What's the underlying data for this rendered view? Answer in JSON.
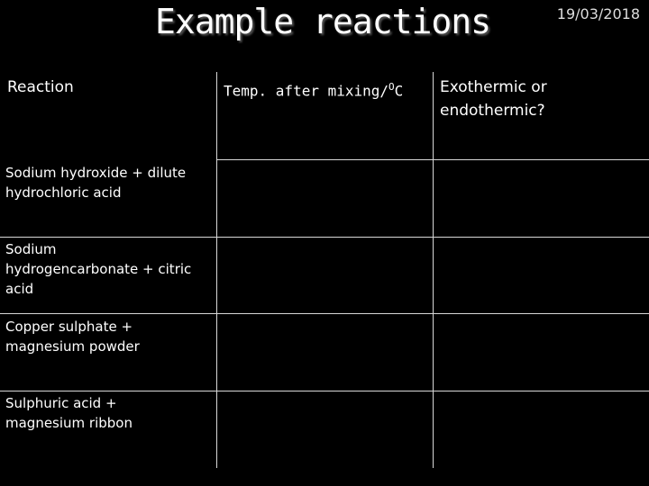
{
  "slide": {
    "title": "Example reactions",
    "date": "19/03/2018"
  },
  "table": {
    "headers": [
      "Reaction",
      "Temp. after mixing/OC",
      "Exothermic or endothermic?"
    ],
    "header_temp": "Temp. after mixing/",
    "header_temp_unit_o": "O",
    "header_temp_unit_c": "C",
    "header_exo_line1": "Exothermic or",
    "header_exo_line2": "endothermic?",
    "rows": [
      {
        "reaction_line1": "Sodium hydroxide + dilute",
        "reaction_line2": "hydrochloric acid",
        "reaction_line3": "",
        "temp": "",
        "type": ""
      },
      {
        "reaction_line1": "Sodium",
        "reaction_line2": "hydrogencarbonate + citric",
        "reaction_line3": "acid",
        "temp": "",
        "type": ""
      },
      {
        "reaction_line1": "Copper sulphate +",
        "reaction_line2": "magnesium powder",
        "reaction_line3": "",
        "temp": "",
        "type": ""
      },
      {
        "reaction_line1": "Sulphuric acid +",
        "reaction_line2": "magnesium ribbon",
        "reaction_line3": "",
        "temp": "",
        "type": ""
      }
    ]
  }
}
